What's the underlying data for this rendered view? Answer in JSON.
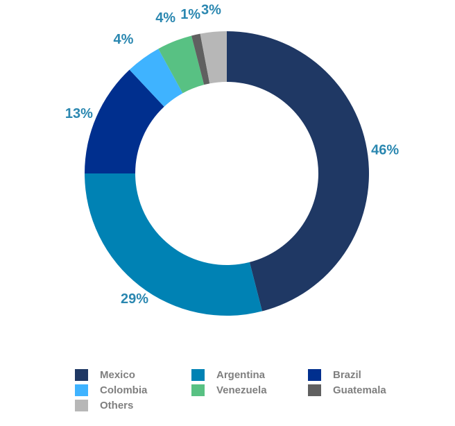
{
  "chart_data": {
    "type": "pie",
    "variant": "donut",
    "categories": [
      "Mexico",
      "Argentina",
      "Brazil",
      "Colombia",
      "Venezuela",
      "Guatemala",
      "Others"
    ],
    "values": [
      46,
      29,
      13,
      4,
      4,
      1,
      3
    ],
    "data_labels": [
      "46%",
      "29%",
      "13%",
      "4%",
      "4%",
      "1%",
      "3%"
    ],
    "colors": [
      "#1f3864",
      "#0082b4",
      "#002f8e",
      "#3fb3ff",
      "#58c183",
      "#606060",
      "#b7b7b7"
    ],
    "label_color": "#2a87b0",
    "legend_position": "bottom",
    "title": ""
  }
}
